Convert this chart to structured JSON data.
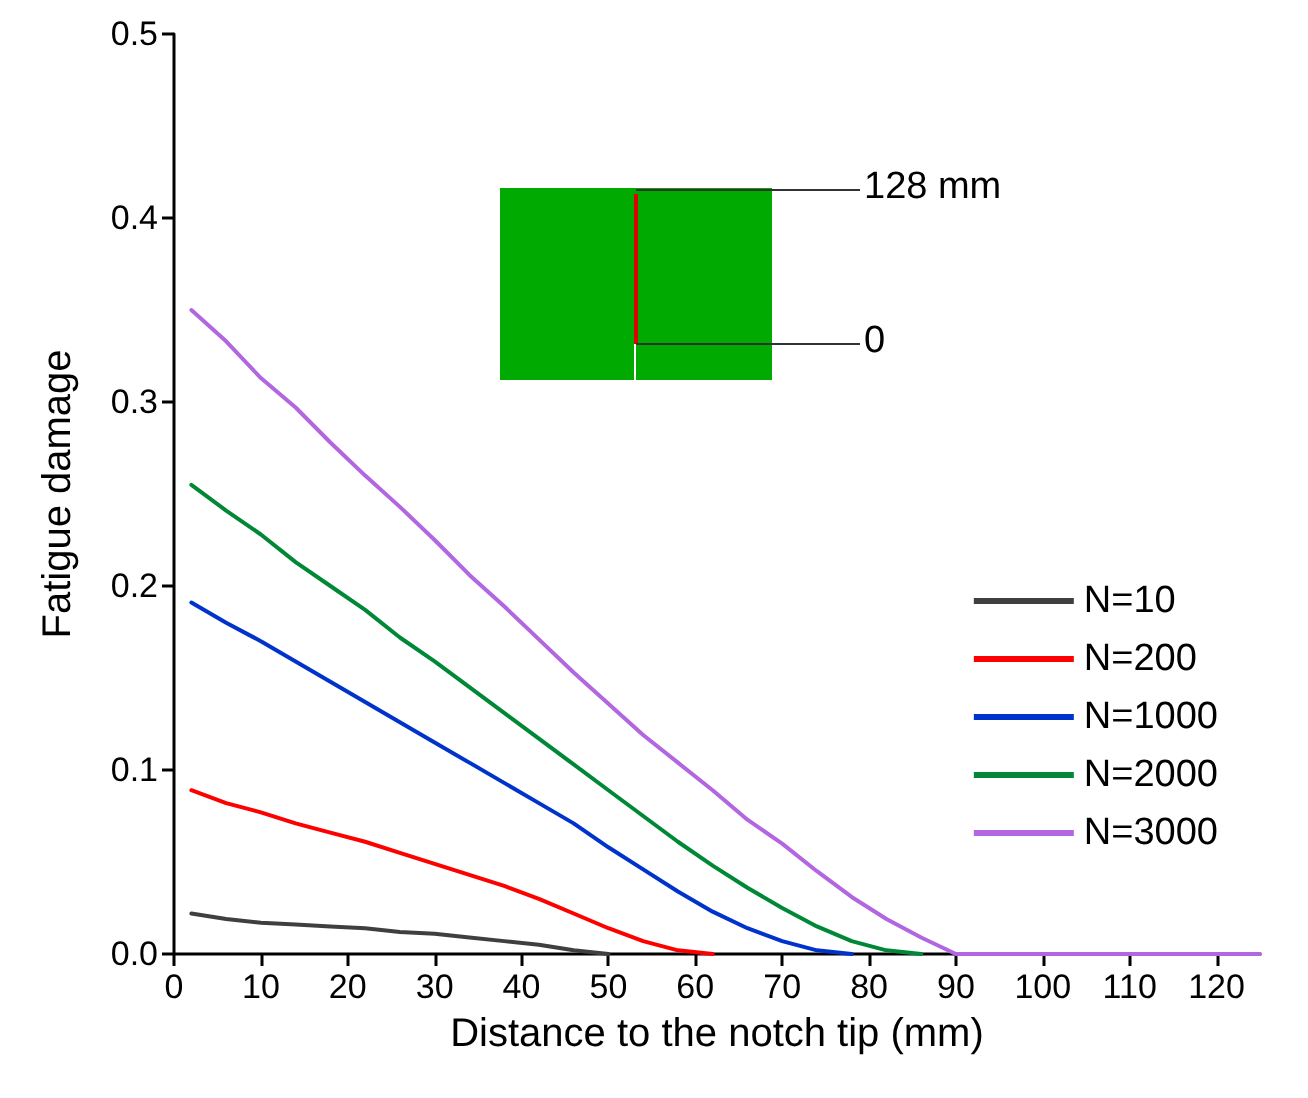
{
  "chart_data": {
    "type": "line",
    "xlabel": "Distance to the notch tip (mm)",
    "ylabel": "Fatigue damage",
    "xlim": [
      0,
      125
    ],
    "xticks": [
      0,
      10,
      20,
      30,
      40,
      50,
      60,
      70,
      80,
      90,
      100,
      110,
      120
    ],
    "ylim": [
      0,
      0.5
    ],
    "yticks": [
      {
        "value": 0,
        "label": "0.0"
      },
      0.1,
      0.2,
      0.3,
      0.4,
      0.5
    ],
    "legend": "bottom right",
    "grid": false,
    "marker": "none",
    "line_style": "solid",
    "annotations": [
      "128 mm",
      "0"
    ],
    "series": [
      {
        "name": "N=10",
        "color": "#3f3f3f",
        "x": [
          2,
          6,
          10,
          14,
          18,
          22,
          26,
          30,
          34,
          38,
          42,
          46,
          50
        ],
        "values": [
          0.022,
          0.019,
          0.017,
          0.016,
          0.015,
          0.014,
          0.012,
          0.011,
          0.009,
          0.007,
          0.005,
          0.002,
          0
        ]
      },
      {
        "name": "N=200",
        "color": "#ff0000",
        "x": [
          2,
          6,
          10,
          14,
          18,
          22,
          26,
          30,
          34,
          38,
          42,
          46,
          50,
          54,
          58,
          62
        ],
        "values": [
          0.089,
          0.082,
          0.077,
          0.071,
          0.066,
          0.061,
          0.055,
          0.049,
          0.043,
          0.037,
          0.03,
          0.022,
          0.014,
          0.007,
          0.002,
          0
        ]
      },
      {
        "name": "N=1000",
        "color": "#0033cc",
        "x": [
          2,
          6,
          10,
          14,
          18,
          22,
          26,
          30,
          34,
          38,
          42,
          46,
          50,
          54,
          58,
          62,
          66,
          70,
          74,
          78
        ],
        "values": [
          0.191,
          0.18,
          0.17,
          0.159,
          0.148,
          0.137,
          0.126,
          0.115,
          0.104,
          0.093,
          0.082,
          0.071,
          0.058,
          0.046,
          0.034,
          0.023,
          0.014,
          0.007,
          0.002,
          0
        ]
      },
      {
        "name": "N=2000",
        "color": "#008837",
        "x": [
          2,
          6,
          10,
          14,
          18,
          22,
          26,
          30,
          34,
          38,
          42,
          46,
          50,
          54,
          58,
          62,
          66,
          70,
          74,
          78,
          82,
          86
        ],
        "values": [
          0.255,
          0.241,
          0.228,
          0.213,
          0.2,
          0.187,
          0.172,
          0.159,
          0.145,
          0.131,
          0.117,
          0.103,
          0.089,
          0.075,
          0.061,
          0.048,
          0.036,
          0.025,
          0.015,
          0.007,
          0.002,
          0
        ]
      },
      {
        "name": "N=3000",
        "color": "#b266e0",
        "x": [
          2,
          6,
          10,
          14,
          18,
          22,
          26,
          30,
          34,
          38,
          42,
          46,
          50,
          54,
          58,
          62,
          66,
          70,
          74,
          78,
          82,
          86,
          90,
          125
        ],
        "values": [
          0.35,
          0.333,
          0.313,
          0.297,
          0.278,
          0.26,
          0.243,
          0.225,
          0.206,
          0.189,
          0.171,
          0.153,
          0.136,
          0.119,
          0.104,
          0.089,
          0.073,
          0.06,
          0.045,
          0.031,
          0.019,
          0.009,
          0,
          0
        ]
      }
    ]
  }
}
